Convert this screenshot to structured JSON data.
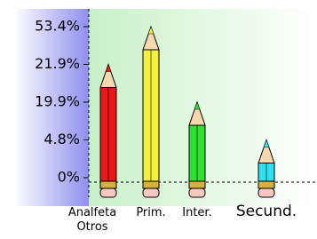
{
  "chart_data": {
    "type": "bar",
    "categories": [
      "Analfeta Otros",
      "Prim.",
      "Inter.",
      "Secund."
    ],
    "values": [
      21.9,
      53.4,
      19.9,
      4.8
    ],
    "colors": [
      "#e81818",
      "#f4f040",
      "#30e030",
      "#30e0f0"
    ],
    "ylim": [
      0,
      53.4
    ],
    "yticks": [
      {
        "value": 0,
        "label": "0%"
      },
      {
        "value": 4.8,
        "label": "4.8%"
      },
      {
        "value": 19.9,
        "label": "19.9%"
      },
      {
        "value": 21.9,
        "label": "21.9%"
      },
      {
        "value": 53.4,
        "label": "53.4%"
      }
    ]
  }
}
